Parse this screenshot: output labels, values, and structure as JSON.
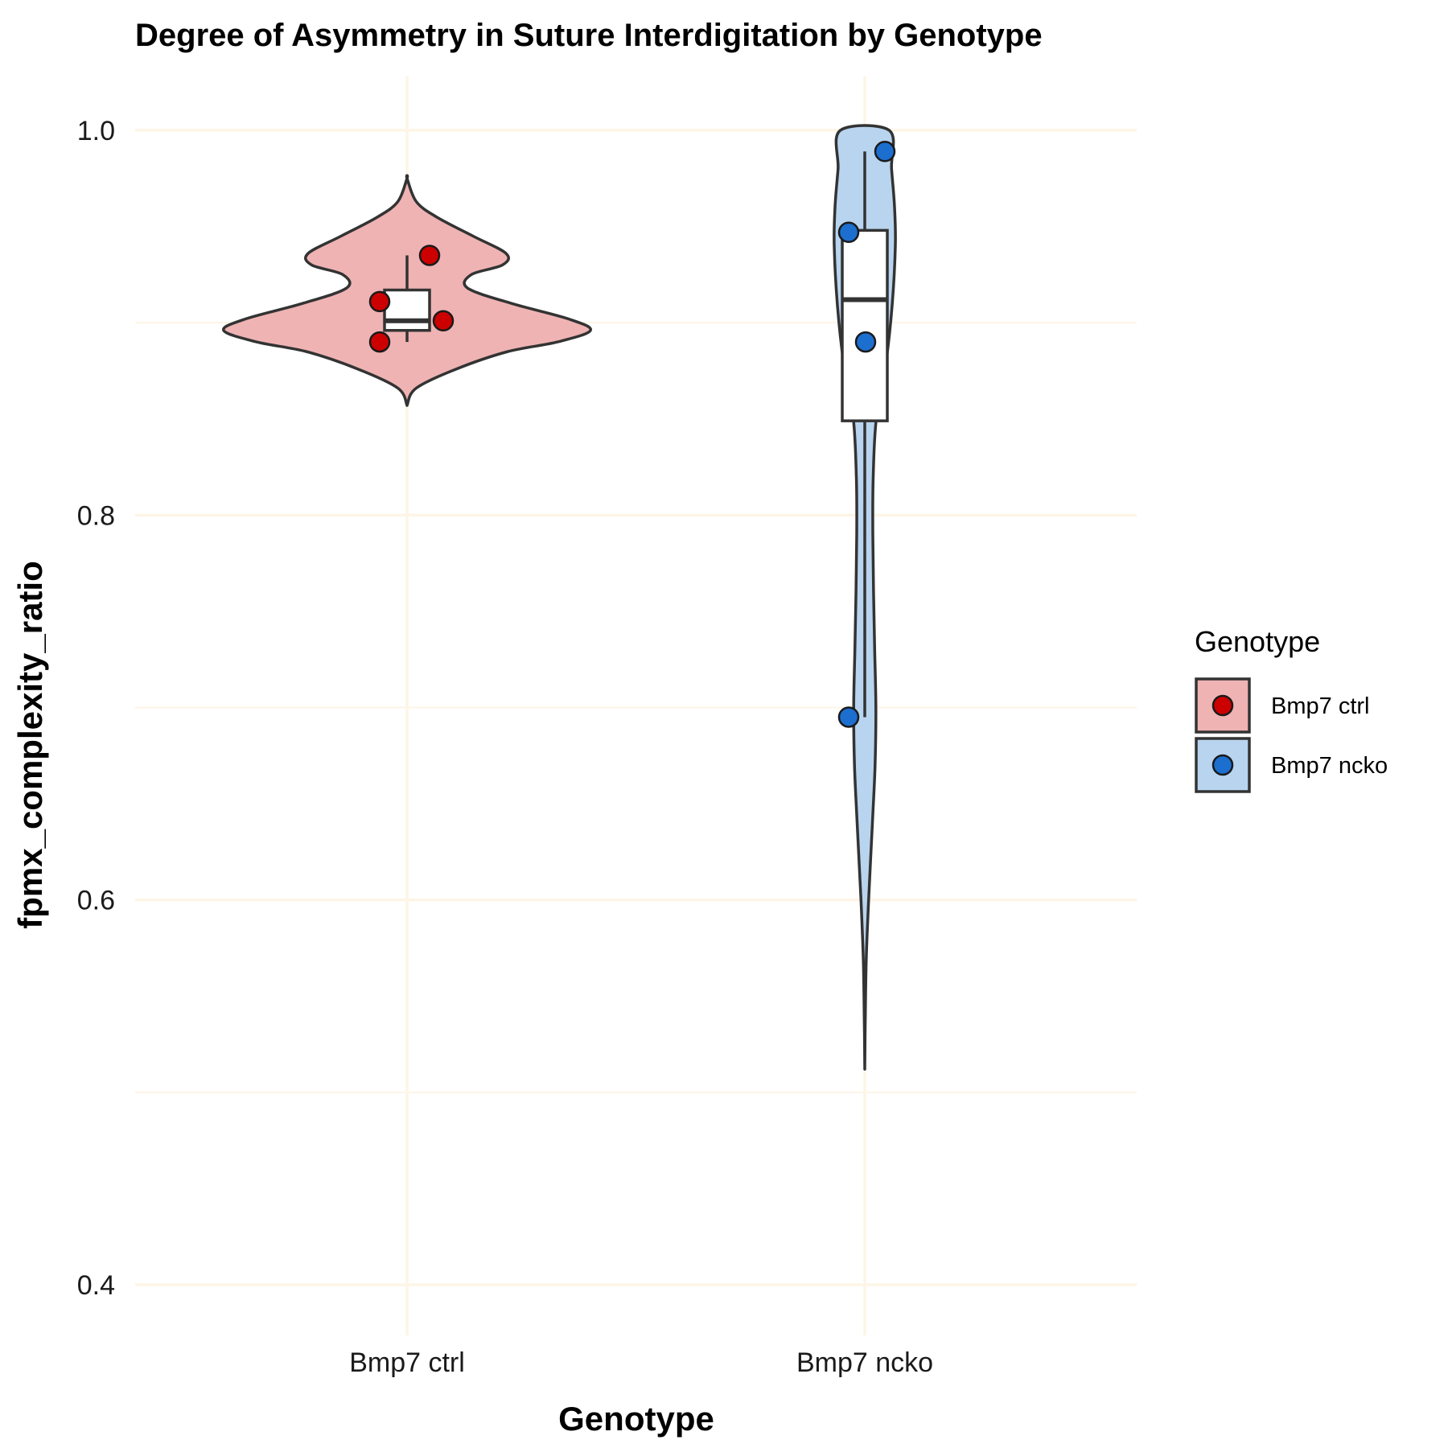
{
  "chart_data": {
    "type": "violin",
    "title": "Degree of Asymmetry in Suture Interdigitation by Genotype",
    "xlabel": "Genotype",
    "ylabel": "fpmx_complexity_ratio",
    "ylim": [
      0.36,
      1.03
    ],
    "yticks": [
      0.4,
      0.6,
      0.8,
      1.0
    ],
    "ytick_labels": [
      "0.4",
      "0.6",
      "0.8",
      "1.0"
    ],
    "grid": true,
    "grid_color": "#fdf5e6",
    "categories": [
      "Bmp7 ctrl",
      "Bmp7 ncko"
    ],
    "legend": {
      "title": "Genotype",
      "position": "right",
      "entries": [
        "Bmp7 ctrl",
        "Bmp7 ncko"
      ]
    },
    "series": [
      {
        "name": "Bmp7 ctrl",
        "fill_color": "#efb3b3",
        "point_color": "#cc0000",
        "points": [
          0.89,
          0.935,
          0.901,
          0.911
        ],
        "box": {
          "min": 0.89,
          "q1": 0.896,
          "median": 0.901,
          "q3": 0.917,
          "max": 0.935
        },
        "violin": [
          [
            0.857,
            0.0
          ],
          [
            0.866,
            0.05
          ],
          [
            0.876,
            0.27
          ],
          [
            0.885,
            0.55
          ],
          [
            0.89,
            0.82
          ],
          [
            0.896,
            1.0
          ],
          [
            0.902,
            0.88
          ],
          [
            0.91,
            0.57
          ],
          [
            0.918,
            0.33
          ],
          [
            0.925,
            0.35
          ],
          [
            0.93,
            0.52
          ],
          [
            0.936,
            0.54
          ],
          [
            0.945,
            0.36
          ],
          [
            0.955,
            0.16
          ],
          [
            0.963,
            0.05
          ],
          [
            0.975,
            0.0
          ]
        ]
      },
      {
        "name": "Bmp7 ncko",
        "fill_color": "#b8d4ef",
        "point_color": "#1c6fcf",
        "points": [
          0.695,
          0.89,
          0.947,
          0.989
        ],
        "box": {
          "min": 0.695,
          "q1": 0.849,
          "median": 0.912,
          "q3": 0.948,
          "max": 0.989
        },
        "violin": [
          [
            0.512,
            0.0
          ],
          [
            0.54,
            0.007
          ],
          [
            0.57,
            0.02
          ],
          [
            0.6,
            0.05
          ],
          [
            0.64,
            0.1
          ],
          [
            0.67,
            0.135
          ],
          [
            0.7,
            0.145
          ],
          [
            0.73,
            0.13
          ],
          [
            0.76,
            0.115
          ],
          [
            0.79,
            0.105
          ],
          [
            0.82,
            0.11
          ],
          [
            0.85,
            0.15
          ],
          [
            0.88,
            0.28
          ],
          [
            0.91,
            0.36
          ],
          [
            0.94,
            0.4
          ],
          [
            0.96,
            0.39
          ],
          [
            0.98,
            0.35
          ],
          [
            1.0,
            0.32
          ]
        ]
      }
    ]
  }
}
